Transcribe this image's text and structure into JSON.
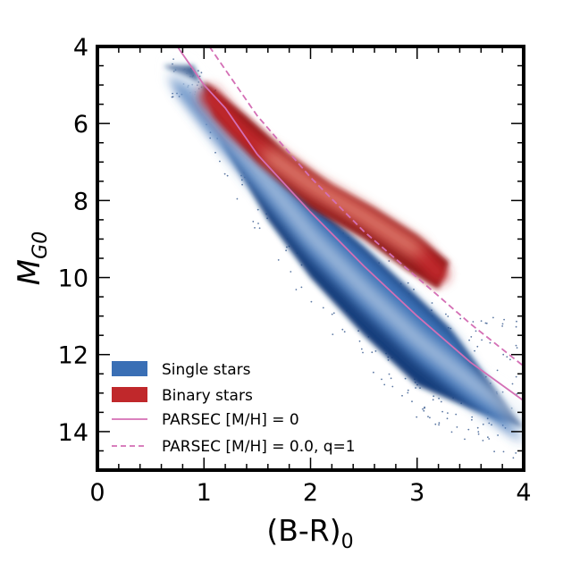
{
  "chart_data": {
    "type": "scatter",
    "title": "",
    "xlabel": {
      "main": "(B-R)",
      "sub": "0"
    },
    "ylabel": {
      "main": "M",
      "sub": "G0"
    },
    "xlim": [
      0,
      4
    ],
    "ylim": [
      15,
      4
    ],
    "y_inverted": true,
    "x_ticks": [
      "0",
      "1",
      "2",
      "3",
      "4"
    ],
    "y_ticks": [
      "4",
      "6",
      "8",
      "10",
      "12",
      "14"
    ],
    "grid": false,
    "legend_position": "bottom-left",
    "colors": {
      "single": "#3a6fb5",
      "single_dark": "#153d7a",
      "single_light": "#dfe9f4",
      "binary": "#c0282b",
      "binary_dark": "#8a1418",
      "binary_light": "#f7c9a8",
      "parsec": "#d46fb5"
    },
    "series": [
      {
        "name": "Single stars",
        "kind": "density",
        "ridge": [
          [
            0.75,
            4.6
          ],
          [
            1.0,
            5.5
          ],
          [
            1.5,
            7.2
          ],
          [
            2.0,
            8.9
          ],
          [
            2.5,
            10.3
          ],
          [
            3.0,
            11.6
          ],
          [
            3.5,
            12.7
          ],
          [
            4.0,
            13.7
          ]
        ],
        "upper_edge": [
          [
            0.62,
            4.5
          ],
          [
            1.0,
            5.0
          ],
          [
            1.5,
            6.6
          ],
          [
            2.0,
            8.0
          ],
          [
            2.5,
            9.2
          ],
          [
            3.0,
            10.5
          ],
          [
            3.3,
            11.3
          ]
        ],
        "lower_edge": [
          [
            0.9,
            4.5
          ],
          [
            1.2,
            6.6
          ],
          [
            1.6,
            8.5
          ],
          [
            2.0,
            10.0
          ],
          [
            2.5,
            11.5
          ],
          [
            3.0,
            12.8
          ],
          [
            3.5,
            13.4
          ],
          [
            4.0,
            13.9
          ]
        ]
      },
      {
        "name": "Binary stars",
        "kind": "density",
        "ridge": [
          [
            1.05,
            5.3
          ],
          [
            1.3,
            6.1
          ],
          [
            1.6,
            6.8
          ],
          [
            2.0,
            7.6
          ],
          [
            2.5,
            8.4
          ],
          [
            3.0,
            9.3
          ],
          [
            3.2,
            9.9
          ]
        ],
        "upper_edge": [
          [
            1.0,
            4.9
          ],
          [
            1.4,
            5.8
          ],
          [
            1.8,
            6.8
          ],
          [
            2.2,
            7.6
          ],
          [
            2.6,
            8.2
          ],
          [
            3.0,
            8.9
          ],
          [
            3.3,
            9.6
          ]
        ],
        "lower_edge": [
          [
            1.1,
            5.8
          ],
          [
            1.5,
            7.0
          ],
          [
            2.0,
            8.2
          ],
          [
            2.5,
            9.0
          ],
          [
            2.9,
            9.8
          ],
          [
            3.2,
            10.3
          ]
        ]
      },
      {
        "name": "PARSEC [M/H] = 0",
        "kind": "line",
        "style": "solid",
        "x": [
          0.75,
          1.0,
          1.2,
          1.5,
          2.0,
          2.5,
          3.0,
          3.5,
          4.0
        ],
        "y": [
          4.0,
          5.0,
          5.6,
          6.8,
          8.3,
          9.7,
          11.0,
          12.2,
          13.2
        ]
      },
      {
        "name": "PARSEC [M/H] = 0.0, q=1",
        "kind": "line",
        "style": "dashed",
        "x": [
          1.05,
          1.2,
          1.5,
          2.0,
          2.5,
          3.0,
          3.5,
          4.0
        ],
        "y": [
          4.0,
          4.6,
          5.8,
          7.4,
          8.8,
          10.0,
          11.2,
          12.3
        ]
      }
    ]
  }
}
